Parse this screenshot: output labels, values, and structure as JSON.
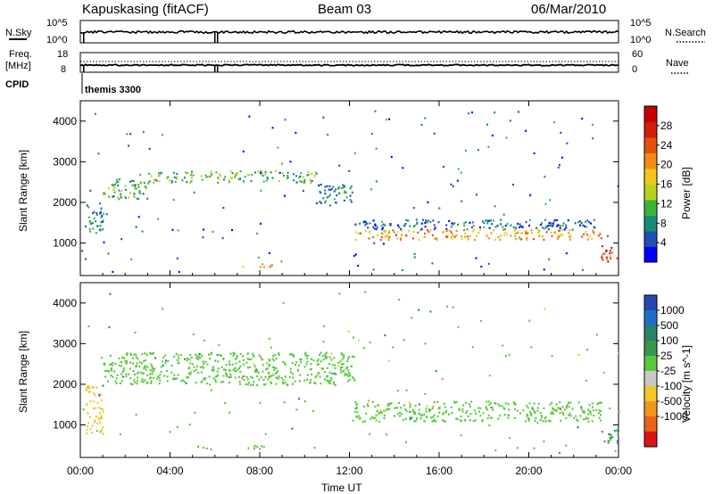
{
  "header": {
    "station": "Kapuskasing (fitACF)",
    "beam": "Beam 03",
    "date": "06/Mar/2010"
  },
  "panels": {
    "nsky": {
      "left_label": "N.Sky",
      "right_label": "N.Search",
      "left_ticks": [
        "10^5",
        "10^0"
      ],
      "right_ticks": [
        "10^5",
        "10^0"
      ]
    },
    "freq": {
      "left_label_1": "Freq.",
      "left_label_2": "[MHz]",
      "right_label": "Nave",
      "left_ticks": [
        "18",
        "8"
      ],
      "right_ticks": [
        "60",
        "0"
      ]
    },
    "cpid": {
      "label": "CPID",
      "value": "themis 3300"
    }
  },
  "x_axis": {
    "label": "Time UT",
    "ticks": [
      "00:00",
      "04:00",
      "08:00",
      "12:00",
      "16:00",
      "20:00",
      "00:00"
    ]
  },
  "colors": {
    "power_scale": [
      "#0000ff",
      "#1e50b4",
      "#148c78",
      "#3cb43c",
      "#b4d21e",
      "#f0c81e",
      "#f08c14",
      "#e6500a",
      "#d21e0a",
      "#c80000"
    ],
    "velocity_scale": [
      "#2846b4",
      "#1e6ec8",
      "#28826e",
      "#3c9650",
      "#5ac83c",
      "#c8c8c8",
      "#f0c828",
      "#f0961e",
      "#e6641e",
      "#dc1414"
    ]
  },
  "chart_data": [
    {
      "type": "heatmap",
      "panel": "power",
      "ylabel": "Slant Range [km]",
      "y_ticks": [
        "1000",
        "2000",
        "3000",
        "4000"
      ],
      "ylim": [
        200,
        4500
      ],
      "xlim": [
        "00:00",
        "24:00"
      ],
      "colorbar_label": "Power [dB]",
      "colorbar_ticks": [
        "4",
        "8",
        "12",
        "16",
        "20",
        "24",
        "28"
      ],
      "color_range": [
        0,
        32
      ],
      "echo_regions": [
        {
          "t_start": 0.2,
          "t_end": 1.0,
          "range_min": 1200,
          "range_max": 2000,
          "power": 8
        },
        {
          "t_start": 1.0,
          "t_end": 3.0,
          "range_min": 2100,
          "range_max": 2600,
          "power": 10
        },
        {
          "t_start": 3.0,
          "t_end": 7.0,
          "range_min": 2500,
          "range_max": 2800,
          "power": 12
        },
        {
          "t_start": 7.0,
          "t_end": 10.5,
          "range_min": 2500,
          "range_max": 2800,
          "power": 11
        },
        {
          "t_start": 10.5,
          "t_end": 12.2,
          "range_min": 2000,
          "range_max": 2500,
          "power": 8
        },
        {
          "t_start": 12.2,
          "t_end": 23.2,
          "range_min": 1350,
          "range_max": 1600,
          "power": 6
        },
        {
          "t_start": 12.2,
          "t_end": 23.2,
          "range_min": 1100,
          "range_max": 1350,
          "power": 20
        },
        {
          "t_start": 7.0,
          "t_end": 8.6,
          "range_min": 430,
          "range_max": 520,
          "power": 20
        },
        {
          "t_start": 23.2,
          "t_end": 24.0,
          "range_min": 550,
          "range_max": 950,
          "power": 26
        }
      ]
    },
    {
      "type": "heatmap",
      "panel": "velocity",
      "ylabel": "Slant Range [km]",
      "y_ticks": [
        "1000",
        "2000",
        "3000",
        "4000"
      ],
      "ylim": [
        200,
        4500
      ],
      "xlim": [
        "00:00",
        "24:00"
      ],
      "colorbar_label": "Velocity [m s^-1]",
      "colorbar_ticks": [
        "1000",
        "500",
        "100",
        "25",
        "-25",
        "-100",
        "-500",
        "-1000"
      ],
      "echo_regions": [
        {
          "t_start": 0.2,
          "t_end": 1.0,
          "range_min": 800,
          "range_max": 2000,
          "velocity": -300
        },
        {
          "t_start": 1.0,
          "t_end": 12.2,
          "range_min": 2000,
          "range_max": 2800,
          "velocity": 0
        },
        {
          "t_start": 12.2,
          "t_end": 23.2,
          "range_min": 1100,
          "range_max": 1600,
          "velocity": 0
        },
        {
          "t_start": 7.0,
          "t_end": 8.6,
          "range_min": 430,
          "range_max": 520,
          "velocity": 0
        },
        {
          "t_start": 23.2,
          "t_end": 24.0,
          "range_min": 550,
          "range_max": 950,
          "velocity": 80
        }
      ]
    }
  ]
}
